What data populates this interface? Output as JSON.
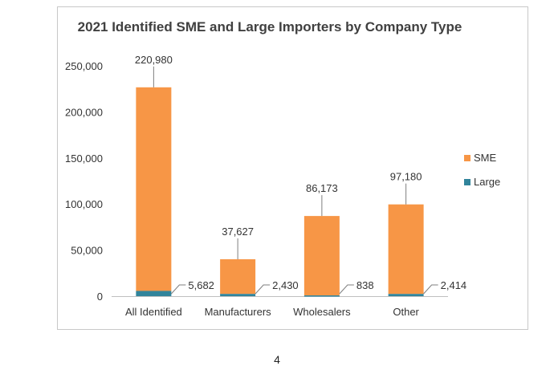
{
  "page_number": "4",
  "colors": {
    "sme": "#f79646",
    "large": "#31849b",
    "axis": "#bfbfbf",
    "leader": "#7f7f7f",
    "text": "#333333"
  },
  "chart_data": {
    "type": "bar",
    "stacked": true,
    "title": "2021 Identified SME and Large Importers by Company Type",
    "categories": [
      "All Identified",
      "Manufacturers",
      "Wholesalers",
      "Other"
    ],
    "series": [
      {
        "name": "Large",
        "values": [
          5682,
          2430,
          838,
          2414
        ],
        "labels": [
          "5,682",
          "2,430",
          "838",
          "2,414"
        ]
      },
      {
        "name": "SME",
        "values": [
          220980,
          37627,
          86173,
          97180
        ],
        "labels": [
          "220,980",
          "37,627",
          "86,173",
          "97,180"
        ]
      }
    ],
    "ylim": [
      0,
      250000
    ],
    "yticks": [
      0,
      50000,
      100000,
      150000,
      200000,
      250000
    ],
    "ytick_labels": [
      "0",
      "50,000",
      "100,000",
      "150,000",
      "200,000",
      "250,000"
    ],
    "grid": false,
    "legend_position": "right",
    "legend": [
      {
        "name": "SME"
      },
      {
        "name": "Large"
      }
    ]
  }
}
